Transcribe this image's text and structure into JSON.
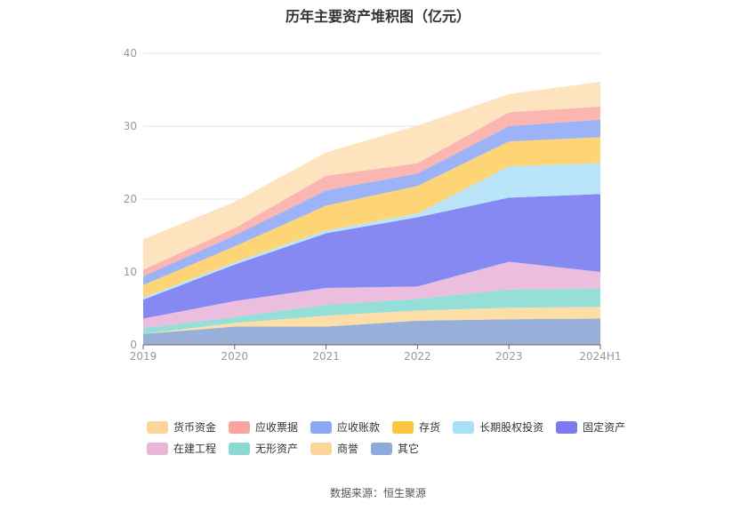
{
  "chart_data": {
    "type": "area",
    "stacked": true,
    "title": "历年主要资产堆积图（亿元）",
    "categories": [
      "2019",
      "2020",
      "2021",
      "2022",
      "2023",
      "2024H1"
    ],
    "ylim": [
      0,
      40
    ],
    "yticks": [
      0,
      10,
      20,
      30,
      40
    ],
    "grid": true,
    "legend_position": "bottom",
    "series": [
      {
        "name": "其它",
        "color": "#8fa8d6",
        "values": [
          1.5,
          2.5,
          2.5,
          3.3,
          3.5,
          3.6
        ]
      },
      {
        "name": "商誉",
        "color": "#fddba0",
        "values": [
          0.0,
          0.5,
          1.5,
          1.4,
          1.6,
          1.6
        ]
      },
      {
        "name": "无形资产",
        "color": "#8ddcd6",
        "values": [
          0.8,
          0.8,
          1.5,
          1.6,
          2.5,
          2.5
        ]
      },
      {
        "name": "在建工程",
        "color": "#e9b7dc",
        "values": [
          1.3,
          2.2,
          2.3,
          1.7,
          3.8,
          2.3
        ]
      },
      {
        "name": "固定资产",
        "color": "#7b7ff0",
        "values": [
          2.6,
          5.0,
          7.5,
          9.5,
          8.8,
          10.7
        ]
      },
      {
        "name": "长期股权投资",
        "color": "#b4e2f8",
        "values": [
          0.3,
          0.3,
          0.4,
          0.5,
          4.3,
          4.2
        ]
      },
      {
        "name": "存货",
        "color": "#fdd16a",
        "values": [
          1.7,
          2.2,
          3.4,
          3.8,
          3.4,
          3.6
        ]
      },
      {
        "name": "应收账款",
        "color": "#94acf7",
        "values": [
          1.2,
          1.5,
          2.1,
          1.7,
          2.1,
          2.4
        ]
      },
      {
        "name": "应收票据",
        "color": "#fbb0aa",
        "values": [
          0.9,
          1.0,
          2.0,
          1.4,
          1.9,
          1.8
        ]
      },
      {
        "name": "货币资金",
        "color": "#fde2b8",
        "values": [
          4.2,
          3.6,
          3.2,
          5.2,
          2.5,
          3.4
        ]
      }
    ]
  },
  "legend": {
    "items": [
      {
        "label": "货币资金",
        "color": "#fdd49a"
      },
      {
        "label": "应收票据",
        "color": "#f9a59d"
      },
      {
        "label": "应收账款",
        "color": "#8fa8f6"
      },
      {
        "label": "存货",
        "color": "#fbc53f"
      },
      {
        "label": "长期股权投资",
        "color": "#a9dff7"
      },
      {
        "label": "固定资产",
        "color": "#7e79ef"
      },
      {
        "label": "在建工程",
        "color": "#e9b6da"
      },
      {
        "label": "无形资产",
        "color": "#89d9d3"
      },
      {
        "label": "商誉",
        "color": "#fdd49a"
      },
      {
        "label": "其它",
        "color": "#8daad9"
      }
    ]
  },
  "source": "数据来源：恒生聚源"
}
